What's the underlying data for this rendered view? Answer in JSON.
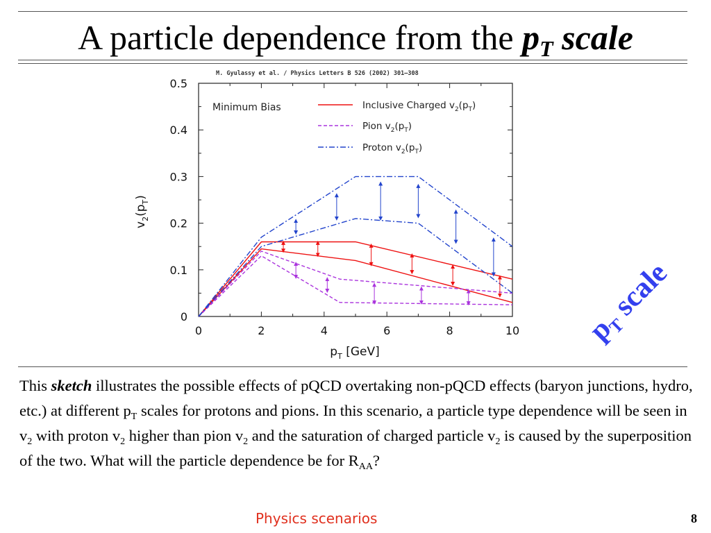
{
  "title": {
    "main": "A particle dependence from the ",
    "p": "p",
    "sub": "T",
    "scale": " scale"
  },
  "side_label": {
    "p": "p",
    "sub": "T",
    "rest": " scale",
    "color": "#3340ee"
  },
  "body": {
    "t1": "This ",
    "sketch": "sketch",
    "t2": " illustrates the possible effects of pQCD overtaking non-pQCD effects (baryon junctions, hydro, etc.) at different p",
    "s1": "T",
    "t3": " scales for protons and pions. In this scenario, a particle type dependence will be seen in v",
    "s2": "2",
    "t4": " with proton v",
    "s3": "2",
    "t5": " higher than pion v",
    "s4": "2",
    "t6": " and the saturation of charged particle v",
    "s5": "2",
    "t7": " is caused by the superposition of the two.  What will the particle dependence be for R",
    "s6": "AA",
    "t8": "?"
  },
  "footer": "Physics scenarios",
  "page_number": "8",
  "chart_data": {
    "type": "line",
    "citation": "M. Gyulassy et al. / Physics Letters B 526 (2002) 301–308",
    "annotation": "Minimum Bias",
    "xlabel": {
      "main": "p",
      "sub": "T",
      "rest": " [GeV]"
    },
    "ylabel": {
      "main": "v",
      "sub1": "2",
      "mid": "(p",
      "sub2": "T",
      "end": ")"
    },
    "xlim": [
      0,
      10
    ],
    "ylim": [
      0,
      0.5
    ],
    "xticks": [
      "0",
      "2",
      "4",
      "6",
      "8",
      "10"
    ],
    "yticks": [
      "0",
      "0.1",
      "0.2",
      "0.3",
      "0.4",
      "0.5"
    ],
    "legend_position": "top-right",
    "series": [
      {
        "name": "Inclusive Charged v2(pT)",
        "legend": {
          "a": "Inclusive Charged v",
          "s1": "2",
          "b": "(p",
          "s2": "T",
          "c": ")"
        },
        "color": "#ee1111",
        "dash": "solid",
        "lines": [
          [
            [
              0,
              0
            ],
            [
              2,
              0.16
            ],
            [
              5,
              0.16
            ],
            [
              10,
              0.08
            ]
          ],
          [
            [
              0,
              0
            ],
            [
              2,
              0.145
            ],
            [
              5,
              0.12
            ],
            [
              10,
              0.03
            ]
          ]
        ]
      },
      {
        "name": "Pion v2(pT)",
        "legend": {
          "a": "Pion v",
          "s1": "2",
          "b": "(p",
          "s2": "T",
          "c": ")"
        },
        "color": "#aa33dd",
        "dash": "dashed",
        "lines": [
          [
            [
              0,
              0
            ],
            [
              2,
              0.14
            ],
            [
              4.5,
              0.08
            ],
            [
              10,
              0.05
            ]
          ],
          [
            [
              0,
              0
            ],
            [
              2,
              0.13
            ],
            [
              4.5,
              0.03
            ],
            [
              10,
              0.025
            ]
          ]
        ]
      },
      {
        "name": "Proton v2(pT)",
        "legend": {
          "a": "Proton v",
          "s1": "2",
          "b": "(p",
          "s2": "T",
          "c": ")"
        },
        "color": "#2244cc",
        "dash": "dashdot",
        "lines": [
          [
            [
              0,
              0
            ],
            [
              2,
              0.17
            ],
            [
              5,
              0.3
            ],
            [
              7,
              0.3
            ],
            [
              10,
              0.15
            ]
          ],
          [
            [
              0,
              0
            ],
            [
              2,
              0.15
            ],
            [
              5,
              0.21
            ],
            [
              7,
              0.2
            ],
            [
              10,
              0.05
            ]
          ]
        ]
      }
    ],
    "arrows": [
      {
        "x": 2.7,
        "y1": 0.141,
        "y2": 0.158,
        "color": "#ee1111"
      },
      {
        "x": 3.8,
        "y1": 0.132,
        "y2": 0.158,
        "color": "#ee1111"
      },
      {
        "x": 5.5,
        "y1": 0.112,
        "y2": 0.152,
        "color": "#ee1111"
      },
      {
        "x": 6.8,
        "y1": 0.095,
        "y2": 0.131,
        "color": "#ee1111"
      },
      {
        "x": 8.1,
        "y1": 0.07,
        "y2": 0.107,
        "color": "#ee1111"
      },
      {
        "x": 9.6,
        "y1": 0.045,
        "y2": 0.084,
        "color": "#ee1111"
      },
      {
        "x": 3.1,
        "y1": 0.085,
        "y2": 0.113,
        "color": "#aa33dd"
      },
      {
        "x": 4.1,
        "y1": 0.055,
        "y2": 0.08,
        "color": "#aa33dd"
      },
      {
        "x": 5.6,
        "y1": 0.03,
        "y2": 0.068,
        "color": "#aa33dd"
      },
      {
        "x": 7.1,
        "y1": 0.03,
        "y2": 0.06,
        "color": "#aa33dd"
      },
      {
        "x": 8.6,
        "y1": 0.028,
        "y2": 0.054,
        "color": "#aa33dd"
      },
      {
        "x": 3.1,
        "y1": 0.18,
        "y2": 0.205,
        "color": "#2244cc"
      },
      {
        "x": 4.4,
        "y1": 0.21,
        "y2": 0.26,
        "color": "#2244cc"
      },
      {
        "x": 5.8,
        "y1": 0.21,
        "y2": 0.285,
        "color": "#2244cc"
      },
      {
        "x": 7.0,
        "y1": 0.215,
        "y2": 0.28,
        "color": "#2244cc"
      },
      {
        "x": 8.2,
        "y1": 0.16,
        "y2": 0.225,
        "color": "#2244cc"
      },
      {
        "x": 9.4,
        "y1": 0.09,
        "y2": 0.165,
        "color": "#2244cc"
      }
    ]
  }
}
